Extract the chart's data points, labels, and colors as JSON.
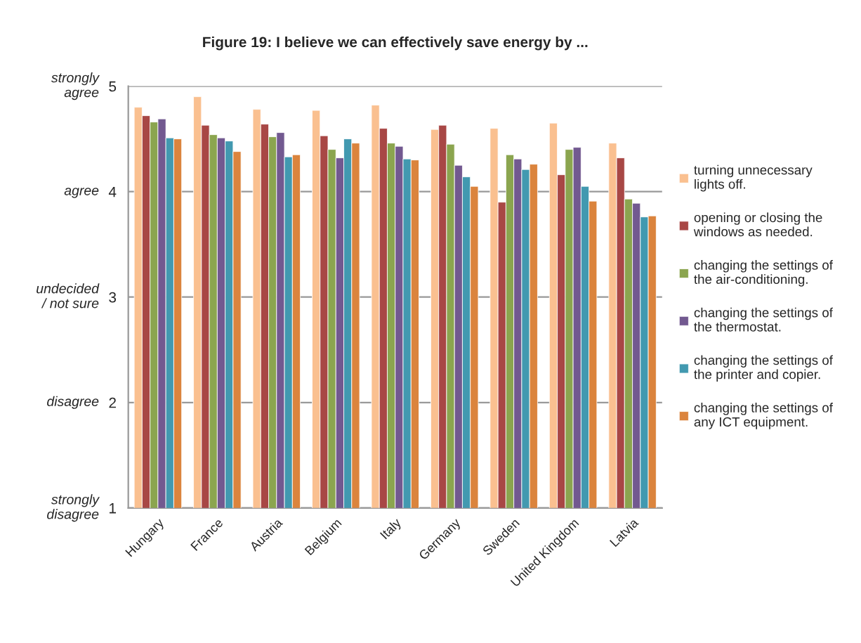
{
  "chart_data": {
    "type": "bar",
    "title": "Figure 19: I believe we can effectively save energy by ...",
    "categories": [
      "Hungary",
      "France",
      "Austria",
      "Belgium",
      "Italy",
      "Germany",
      "Sweden",
      "United Kingdom",
      "Latvia"
    ],
    "series": [
      {
        "name": "turning unnecessary\nlights off.",
        "color": "#fac090",
        "values": [
          4.8,
          4.9,
          4.78,
          4.77,
          4.82,
          4.59,
          4.6,
          4.65,
          4.46
        ]
      },
      {
        "name": "opening or closing the\nwindows as needed.",
        "color": "#a84745",
        "values": [
          4.72,
          4.63,
          4.64,
          4.53,
          4.6,
          4.63,
          3.9,
          4.16,
          4.32
        ]
      },
      {
        "name": "changing the settings of\nthe air-conditioning.",
        "color": "#8ba54f",
        "values": [
          4.66,
          4.54,
          4.52,
          4.4,
          4.46,
          4.45,
          4.35,
          4.4,
          3.93
        ]
      },
      {
        "name": "changing the settings of\nthe thermostat.",
        "color": "#725990",
        "values": [
          4.69,
          4.51,
          4.56,
          4.32,
          4.43,
          4.25,
          4.31,
          4.42,
          3.89
        ]
      },
      {
        "name": "changing the settings of\nthe printer and copier.",
        "color": "#4299b0",
        "values": [
          4.51,
          4.48,
          4.33,
          4.5,
          4.31,
          4.14,
          4.21,
          4.05,
          3.76
        ]
      },
      {
        "name": "changing the settings of\nany ICT equipment.",
        "color": "#db843d",
        "values": [
          4.5,
          4.38,
          4.35,
          4.46,
          4.3,
          4.05,
          4.26,
          3.91,
          3.77
        ]
      }
    ],
    "ylim": [
      1,
      5
    ],
    "yticks": [
      1,
      2,
      3,
      4,
      5
    ],
    "annotations": [
      "strongly\ndisagree",
      "disagree",
      "undecided\n/ not sure",
      "agree",
      "strongly\nagree"
    ],
    "grid": "y",
    "legend": "right"
  }
}
